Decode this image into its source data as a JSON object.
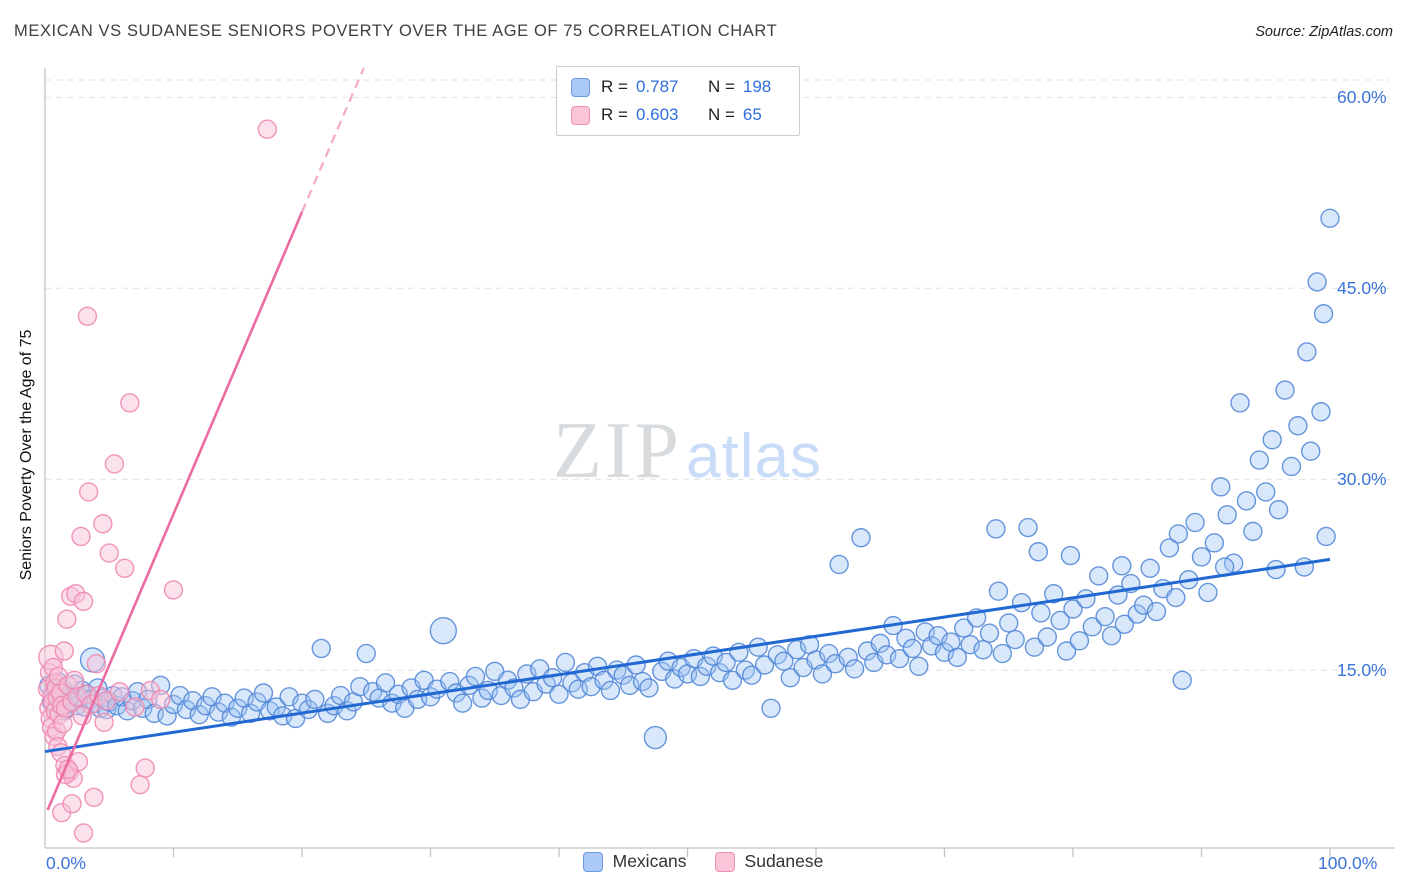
{
  "header": {
    "title": "MEXICAN VS SUDANESE SENIORS POVERTY OVER THE AGE OF 75 CORRELATION CHART",
    "source": "Source: ZipAtlas.com"
  },
  "legend_box": {
    "rows": [
      {
        "series": "Mexicans",
        "r_label": "R =",
        "r_value": "0.787",
        "n_label": "N =",
        "n_value": "198"
      },
      {
        "series": "Sudanese",
        "r_label": "R =",
        "r_value": "0.603",
        "n_label": "N =",
        "n_value": "65"
      }
    ]
  },
  "axes": {
    "y_label": "Seniors Poverty Over the Age of 75",
    "y_ticks": [
      "60.0%",
      "45.0%",
      "30.0%",
      "15.0%"
    ],
    "x_min_label": "0.0%",
    "x_max_label": "100.0%"
  },
  "watermark": {
    "part1": "ZIP",
    "part2": "atlas"
  },
  "bottom_legend": [
    {
      "label": "Mexicans",
      "color": "#aac9f6"
    },
    {
      "label": "Sudanese",
      "color": "#fac4d9"
    }
  ],
  "colors": {
    "accent_blue": "#2f6fde",
    "blue_fill": "#9ec4f2",
    "blue_stroke": "#4d84d6",
    "pink_fill": "#f8c3d8",
    "pink_stroke": "#ee8ab2",
    "blue_trend": "#2268d3",
    "pink_trend": "#ec6ba1",
    "grid": "#e2e2e2"
  },
  "chart_data": {
    "type": "scatter",
    "title": "MEXICAN VS SUDANESE SENIORS POVERTY OVER THE AGE OF 75 CORRELATION CHART",
    "xlabel": "",
    "ylabel": "Seniors Poverty Over the Age of 75",
    "x_range": [
      0,
      100
    ],
    "y_range": [
      0,
      62.3
    ],
    "y_tick_values": [
      15,
      30,
      45,
      60
    ],
    "x_tick_step": 10,
    "grid": "horizontal-dashed",
    "legend_position": "bottom-center",
    "series": [
      {
        "name": "Mexicans",
        "R": 0.787,
        "N": 198,
        "points": [
          [
            0.3,
            13.8
          ],
          [
            0.5,
            12.5
          ],
          [
            0.7,
            13.2
          ],
          [
            0.9,
            12.0
          ],
          [
            1.0,
            14.1
          ],
          [
            1.2,
            12.8
          ],
          [
            1.4,
            13.5
          ],
          [
            1.5,
            11.8
          ],
          [
            1.7,
            12.3
          ],
          [
            1.9,
            13.0
          ],
          [
            2.1,
            12.6
          ],
          [
            2.3,
            13.9
          ],
          [
            2.5,
            12.2
          ],
          [
            2.7,
            12.9
          ],
          [
            2.9,
            13.4
          ],
          [
            3.1,
            12.1
          ],
          [
            3.3,
            13.1
          ],
          [
            3.5,
            12.7
          ],
          [
            3.7,
            15.8,
            12
          ],
          [
            3.9,
            12.4
          ],
          [
            4.1,
            13.6
          ],
          [
            4.3,
            12.0
          ],
          [
            4.5,
            12.8
          ],
          [
            4.8,
            11.9
          ],
          [
            5.0,
            12.5
          ],
          [
            5.3,
            13.0
          ],
          [
            5.6,
            12.2
          ],
          [
            6.0,
            12.9
          ],
          [
            6.4,
            11.8
          ],
          [
            6.8,
            12.6
          ],
          [
            7.2,
            13.3
          ],
          [
            7.6,
            12.0
          ],
          [
            8.0,
            12.7
          ],
          [
            8.5,
            11.6
          ],
          [
            9.0,
            13.8
          ],
          [
            9.5,
            11.4
          ],
          [
            10.0,
            12.3
          ],
          [
            10.5,
            13.0
          ],
          [
            11.0,
            11.9
          ],
          [
            11.5,
            12.6
          ],
          [
            12.0,
            11.5
          ],
          [
            12.5,
            12.2
          ],
          [
            13.0,
            12.9
          ],
          [
            13.5,
            11.7
          ],
          [
            14.0,
            12.4
          ],
          [
            14.5,
            11.3
          ],
          [
            15.0,
            12.0
          ],
          [
            15.5,
            12.8
          ],
          [
            16.0,
            11.6
          ],
          [
            16.5,
            12.5
          ],
          [
            17.0,
            13.2
          ],
          [
            17.5,
            11.8
          ],
          [
            18.0,
            12.1
          ],
          [
            18.5,
            11.4
          ],
          [
            19.0,
            12.9
          ],
          [
            19.5,
            11.2
          ],
          [
            20.0,
            12.4
          ],
          [
            20.5,
            11.9
          ],
          [
            21.0,
            12.7
          ],
          [
            21.5,
            16.7
          ],
          [
            22.0,
            11.6
          ],
          [
            22.5,
            12.2
          ],
          [
            23.0,
            13.0
          ],
          [
            23.5,
            11.8
          ],
          [
            24.0,
            12.5
          ],
          [
            24.5,
            13.7
          ],
          [
            25.0,
            16.3
          ],
          [
            25.5,
            13.3
          ],
          [
            26.0,
            12.8
          ],
          [
            26.5,
            14.0
          ],
          [
            27.0,
            12.4
          ],
          [
            27.5,
            13.1
          ],
          [
            28.0,
            12.0
          ],
          [
            28.5,
            13.6
          ],
          [
            29.0,
            12.7
          ],
          [
            29.5,
            14.2
          ],
          [
            30.0,
            12.9
          ],
          [
            30.5,
            13.5
          ],
          [
            31.0,
            18.1,
            13
          ],
          [
            31.5,
            14.1
          ],
          [
            32.0,
            13.2
          ],
          [
            32.5,
            12.4
          ],
          [
            33.0,
            13.8
          ],
          [
            33.5,
            14.5
          ],
          [
            34.0,
            12.8
          ],
          [
            34.5,
            13.4
          ],
          [
            35.0,
            14.9
          ],
          [
            35.5,
            13.0
          ],
          [
            36.0,
            14.2
          ],
          [
            36.5,
            13.6
          ],
          [
            37.0,
            12.7
          ],
          [
            37.5,
            14.7
          ],
          [
            38.0,
            13.3
          ],
          [
            38.5,
            15.1
          ],
          [
            39.0,
            13.9
          ],
          [
            39.5,
            14.4
          ],
          [
            40.0,
            13.1
          ],
          [
            40.5,
            15.6
          ],
          [
            41.0,
            14.0
          ],
          [
            41.5,
            13.5
          ],
          [
            42.0,
            14.8
          ],
          [
            42.5,
            13.7
          ],
          [
            43.0,
            15.3
          ],
          [
            43.5,
            14.2
          ],
          [
            44.0,
            13.4
          ],
          [
            44.5,
            15.0
          ],
          [
            45.0,
            14.6
          ],
          [
            45.5,
            13.8
          ],
          [
            46.0,
            15.4
          ],
          [
            46.5,
            14.1
          ],
          [
            47.0,
            13.6
          ],
          [
            47.5,
            9.7,
            11
          ],
          [
            48.0,
            14.9
          ],
          [
            48.5,
            15.7
          ],
          [
            49.0,
            14.3
          ],
          [
            49.5,
            15.2
          ],
          [
            50.0,
            14.7
          ],
          [
            50.5,
            15.9
          ],
          [
            51.0,
            14.5
          ],
          [
            51.5,
            15.3
          ],
          [
            52.0,
            16.1
          ],
          [
            52.5,
            14.8
          ],
          [
            53.0,
            15.6
          ],
          [
            53.5,
            14.2
          ],
          [
            54.0,
            16.4
          ],
          [
            54.5,
            15.0
          ],
          [
            55.0,
            14.6
          ],
          [
            55.5,
            16.8
          ],
          [
            56.0,
            15.4
          ],
          [
            56.5,
            12.0
          ],
          [
            57.0,
            16.2
          ],
          [
            57.5,
            15.7
          ],
          [
            58.0,
            14.4
          ],
          [
            58.5,
            16.6
          ],
          [
            59.0,
            15.2
          ],
          [
            59.5,
            17.0
          ],
          [
            60.0,
            15.8
          ],
          [
            60.5,
            14.7
          ],
          [
            61.0,
            16.3
          ],
          [
            61.5,
            15.5
          ],
          [
            61.8,
            23.3
          ],
          [
            62.5,
            16.0
          ],
          [
            63.0,
            15.1
          ],
          [
            63.5,
            25.4
          ],
          [
            64.0,
            16.5
          ],
          [
            64.5,
            15.6
          ],
          [
            65.0,
            17.1
          ],
          [
            65.5,
            16.2
          ],
          [
            66.0,
            18.5
          ],
          [
            66.5,
            15.9
          ],
          [
            67.0,
            17.5
          ],
          [
            67.5,
            16.7
          ],
          [
            68.0,
            15.3
          ],
          [
            68.5,
            18.0
          ],
          [
            69.0,
            16.9
          ],
          [
            69.5,
            17.7
          ],
          [
            70.0,
            16.4
          ],
          [
            70.5,
            17.2
          ],
          [
            71.0,
            16.0
          ],
          [
            71.5,
            18.3
          ],
          [
            72.0,
            17.0
          ],
          [
            72.5,
            19.1
          ],
          [
            73.0,
            16.6
          ],
          [
            73.5,
            17.9
          ],
          [
            74.0,
            26.1
          ],
          [
            74.5,
            16.3
          ],
          [
            75.0,
            18.7
          ],
          [
            75.5,
            17.4
          ],
          [
            76.0,
            20.3
          ],
          [
            76.5,
            26.2
          ],
          [
            77.0,
            16.8
          ],
          [
            77.3,
            24.3
          ],
          [
            77.5,
            19.5
          ],
          [
            78.0,
            17.6
          ],
          [
            78.5,
            21.0
          ],
          [
            79.0,
            18.9
          ],
          [
            79.5,
            16.5
          ],
          [
            80.0,
            19.8
          ],
          [
            80.5,
            17.3
          ],
          [
            81.0,
            20.6
          ],
          [
            81.5,
            18.4
          ],
          [
            82.0,
            22.4
          ],
          [
            82.5,
            19.2
          ],
          [
            83.0,
            17.7
          ],
          [
            83.5,
            20.9
          ],
          [
            84.0,
            18.6
          ],
          [
            84.5,
            21.8
          ],
          [
            85.0,
            19.4
          ],
          [
            74.2,
            21.2
          ],
          [
            79.8,
            24.0
          ],
          [
            83.8,
            23.2
          ],
          [
            85.5,
            20.1
          ],
          [
            86.0,
            23.0
          ],
          [
            86.5,
            19.6
          ],
          [
            87.0,
            21.4
          ],
          [
            87.5,
            24.6
          ],
          [
            88.0,
            20.7
          ],
          [
            88.5,
            14.2
          ],
          [
            89.0,
            22.1
          ],
          [
            89.5,
            26.6
          ],
          [
            90.0,
            23.9
          ],
          [
            90.5,
            21.1
          ],
          [
            91.0,
            25.0
          ],
          [
            91.5,
            29.4
          ],
          [
            92.0,
            27.2
          ],
          [
            92.5,
            23.4
          ],
          [
            93.0,
            36.0
          ],
          [
            93.5,
            28.3
          ],
          [
            94.0,
            25.9
          ],
          [
            94.5,
            31.5
          ],
          [
            95.0,
            29.0
          ],
          [
            95.5,
            33.1
          ],
          [
            96.0,
            27.6
          ],
          [
            96.5,
            37.0
          ],
          [
            97.0,
            31.0
          ],
          [
            97.5,
            34.2
          ],
          [
            98.0,
            23.1
          ],
          [
            98.2,
            40.0
          ],
          [
            98.5,
            32.2
          ],
          [
            99.0,
            45.5
          ],
          [
            99.3,
            35.3
          ],
          [
            99.5,
            43.0
          ],
          [
            99.7,
            25.5
          ],
          [
            100.0,
            50.5
          ],
          [
            88.2,
            25.7
          ],
          [
            91.8,
            23.1
          ],
          [
            95.8,
            22.9
          ]
        ]
      },
      {
        "name": "Sudanese",
        "R": 0.603,
        "N": 65,
        "points": [
          [
            0.2,
            13.5
          ],
          [
            0.3,
            12.0
          ],
          [
            0.35,
            14.8
          ],
          [
            0.4,
            11.2
          ],
          [
            0.45,
            16.0,
            12
          ],
          [
            0.5,
            10.5
          ],
          [
            0.55,
            13.0
          ],
          [
            0.6,
            12.5
          ],
          [
            0.65,
            15.2
          ],
          [
            0.7,
            9.8
          ],
          [
            0.75,
            14.0
          ],
          [
            0.8,
            11.8
          ],
          [
            0.85,
            13.6
          ],
          [
            0.9,
            10.2
          ],
          [
            0.95,
            12.8
          ],
          [
            1.0,
            9.0
          ],
          [
            1.05,
            14.5
          ],
          [
            1.1,
            11.5
          ],
          [
            1.2,
            13.2
          ],
          [
            1.25,
            8.5
          ],
          [
            1.3,
            12.2
          ],
          [
            1.4,
            10.8
          ],
          [
            1.5,
            16.5
          ],
          [
            1.55,
            7.5
          ],
          [
            1.6,
            12.0
          ],
          [
            1.7,
            19.0
          ],
          [
            1.8,
            13.8
          ],
          [
            1.9,
            7.0
          ],
          [
            2.0,
            20.8
          ],
          [
            2.1,
            12.5
          ],
          [
            2.2,
            6.5
          ],
          [
            2.3,
            14.2
          ],
          [
            2.4,
            21.0
          ],
          [
            2.5,
            12.9
          ],
          [
            2.6,
            7.8
          ],
          [
            2.8,
            25.5
          ],
          [
            3.0,
            20.4
          ],
          [
            3.2,
            13.1
          ],
          [
            3.4,
            29.0
          ],
          [
            3.6,
            12.3
          ],
          [
            3.8,
            5.0
          ],
          [
            4.0,
            15.5
          ],
          [
            4.2,
            13.0
          ],
          [
            4.5,
            26.5
          ],
          [
            4.8,
            12.6
          ],
          [
            5.0,
            24.2
          ],
          [
            5.4,
            31.2
          ],
          [
            5.8,
            13.3
          ],
          [
            6.2,
            23.0
          ],
          [
            6.6,
            36.0
          ],
          [
            7.0,
            12.1
          ],
          [
            7.4,
            6.0
          ],
          [
            7.8,
            7.3
          ],
          [
            8.2,
            13.4
          ],
          [
            9.0,
            12.7
          ],
          [
            10.0,
            21.3
          ],
          [
            3.3,
            42.8
          ],
          [
            17.3,
            57.5
          ],
          [
            1.3,
            3.8
          ],
          [
            3.0,
            2.2
          ],
          [
            2.1,
            4.5
          ],
          [
            1.6,
            6.8
          ],
          [
            1.8,
            7.2
          ],
          [
            4.6,
            10.9
          ],
          [
            2.9,
            11.4
          ]
        ]
      }
    ],
    "trend_lines": [
      {
        "series": "Mexicans",
        "style": "solid",
        "from": [
          0,
          8.6
        ],
        "to": [
          100,
          23.7
        ]
      },
      {
        "series": "Sudanese",
        "style": "solid",
        "from": [
          0.2,
          4.0
        ],
        "to": [
          20,
          51.0
        ]
      },
      {
        "series": "Sudanese",
        "style": "dashed",
        "from": [
          20,
          51.0
        ],
        "to": [
          24.8,
          62.3
        ]
      }
    ]
  }
}
